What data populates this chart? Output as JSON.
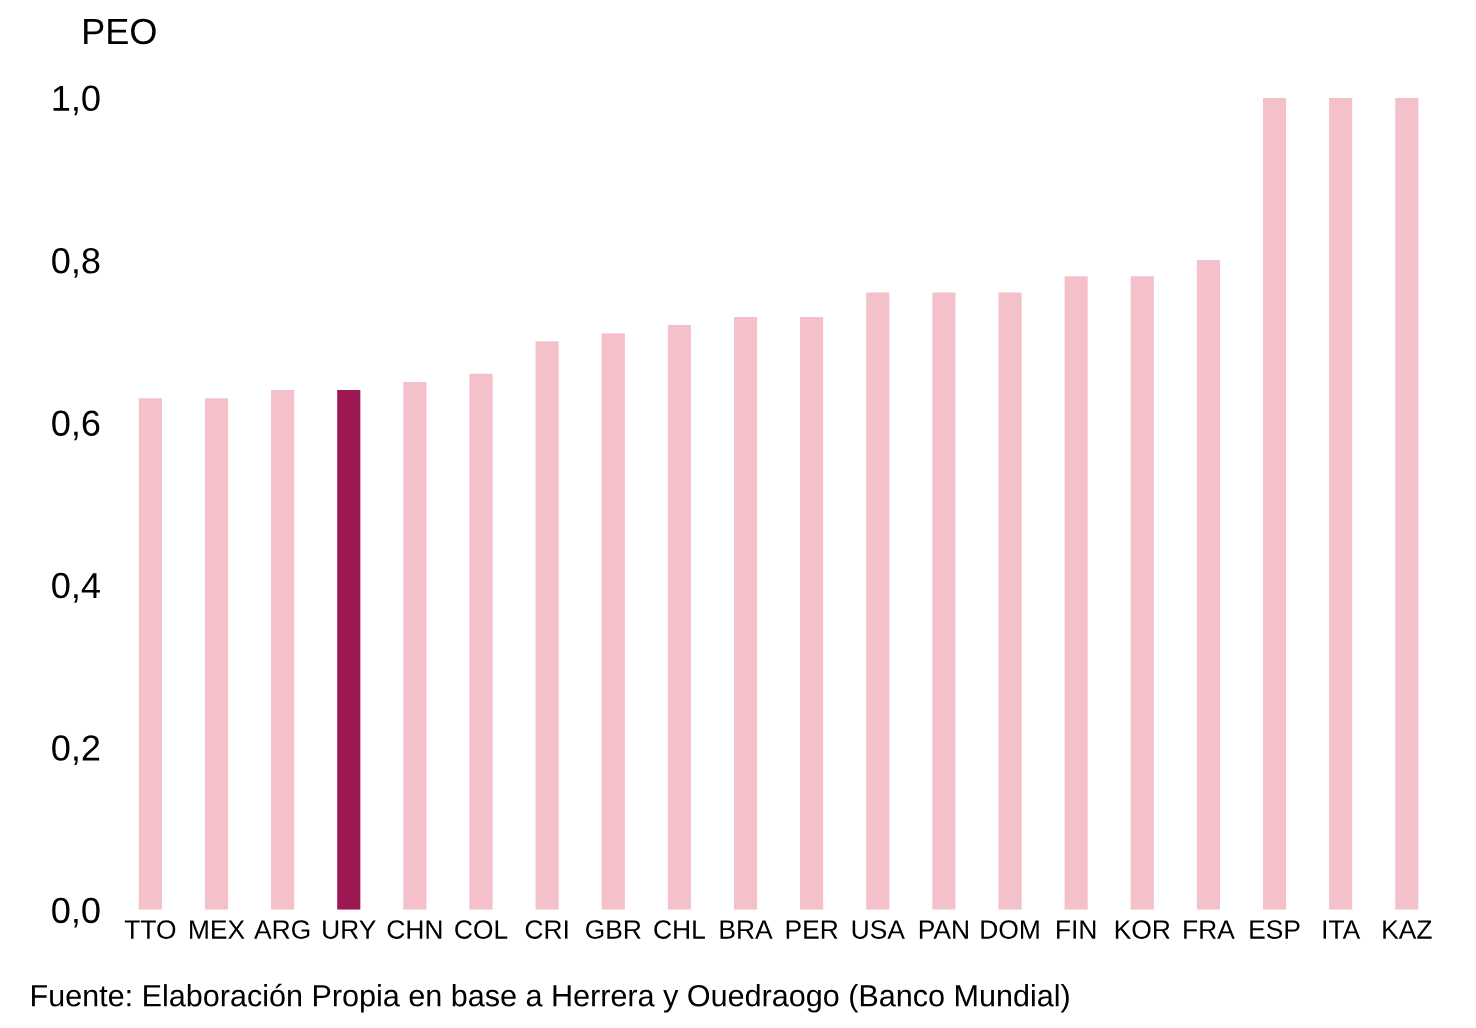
{
  "chart_data": {
    "type": "bar",
    "ylabel": "PEO",
    "categories": [
      "TTO",
      "MEX",
      "ARG",
      "URY",
      "CHN",
      "COL",
      "CRI",
      "GBR",
      "CHL",
      "BRA",
      "PER",
      "USA",
      "PAN",
      "DOM",
      "FIN",
      "KOR",
      "FRA",
      "ESP",
      "ITA",
      "KAZ"
    ],
    "values": [
      0.63,
      0.63,
      0.64,
      0.64,
      0.65,
      0.66,
      0.7,
      0.71,
      0.72,
      0.73,
      0.73,
      0.76,
      0.76,
      0.76,
      0.78,
      0.78,
      0.8,
      1.0,
      1.0,
      1.0
    ],
    "colors": [
      "#f4c1cb",
      "#f4c1cb",
      "#f4c1cb",
      "#9c1852",
      "#f4c1cb",
      "#f4c1cb",
      "#f4c1cb",
      "#f4c1cb",
      "#f4c1cb",
      "#f4c1cb",
      "#f4c1cb",
      "#f4c1cb",
      "#f4c1cb",
      "#f4c1cb",
      "#f4c1cb",
      "#f4c1cb",
      "#f4c1cb",
      "#f4c1cb",
      "#f4c1cb",
      "#f4c1cb"
    ],
    "ylim": [
      0,
      1.0
    ],
    "yticks": [
      {
        "value": 0,
        "label": "0,0"
      },
      {
        "value": 0.2,
        "label": "0,2"
      },
      {
        "value": 0.4,
        "label": "0,4"
      },
      {
        "value": 0.6,
        "label": "0,6"
      },
      {
        "value": 0.8,
        "label": "0,8"
      },
      {
        "value": 1.0,
        "label": "1,0"
      }
    ],
    "grid": false,
    "annotations": [
      "Fuente: Elaboración Propia en base a Herrera y Ouedraogo (Banco Mundial)"
    ]
  }
}
